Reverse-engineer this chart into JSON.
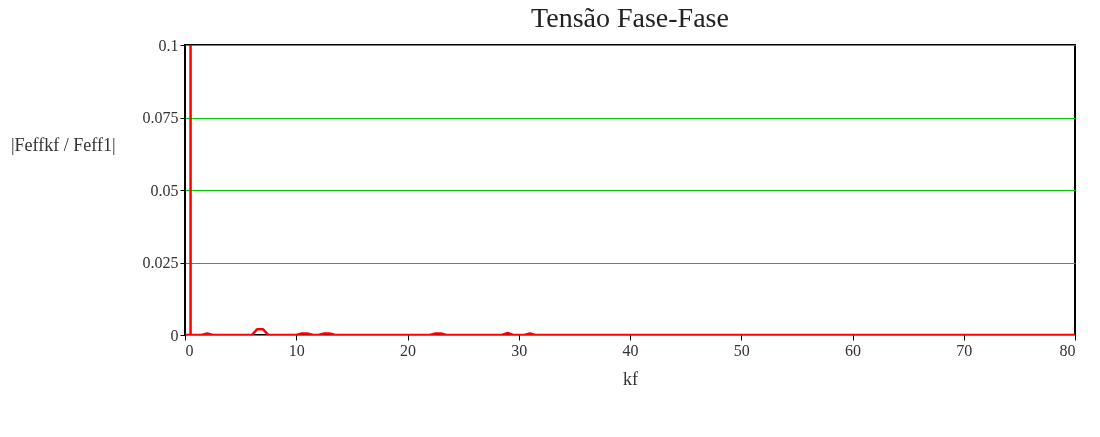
{
  "chart_data": {
    "type": "line",
    "title": "Tensão Fase-Fase",
    "xlabel": "kf",
    "ylabel": "|Feffkf / Feff1|",
    "series": [
      {
        "color": "#ff0000",
        "x": [
          0,
          0.5,
          0.5,
          0.5,
          1.5,
          2,
          2.5,
          6,
          6.5,
          7,
          7.5,
          10,
          10.5,
          11,
          11.5,
          12,
          12.5,
          13,
          13.5,
          22,
          22.5,
          23,
          23.5,
          28.5,
          29,
          29.5,
          30.5,
          31,
          31.5,
          80
        ],
        "values": [
          0,
          0,
          0.1,
          0,
          0,
          0.0005,
          0,
          0,
          0.002,
          0.002,
          0,
          0,
          0.0005,
          0.0005,
          0,
          0,
          0.0005,
          0.0005,
          0,
          0,
          0.0005,
          0.0005,
          0,
          0,
          0.0007,
          0,
          0,
          0.0005,
          0,
          0
        ]
      }
    ],
    "xlim": [
      0,
      80
    ],
    "xticks": [
      0,
      10,
      20,
      30,
      40,
      50,
      60,
      70,
      80
    ],
    "ylim": [
      0,
      0.1
    ],
    "yticks": [
      0,
      0.025,
      0.05,
      0.075,
      0.1
    ],
    "grid": "y",
    "line_style": "solid",
    "marker": "none"
  }
}
